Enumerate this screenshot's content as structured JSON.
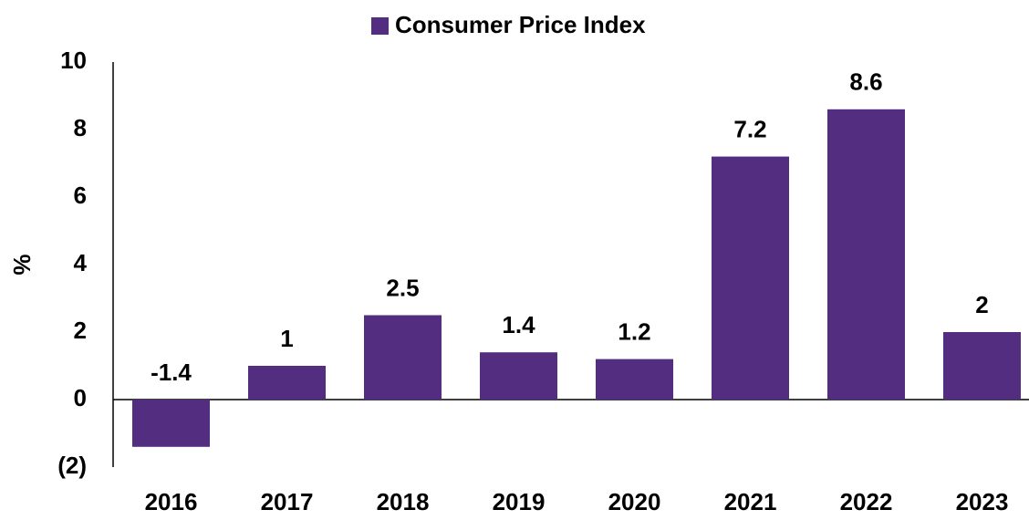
{
  "chart_data": {
    "type": "bar",
    "legend_label": "Consumer Price Index",
    "y_label": "%",
    "categories": [
      "2016",
      "2017",
      "2018",
      "2019",
      "2020",
      "2021",
      "2022",
      "2023"
    ],
    "values": [
      -1.4,
      1,
      2.5,
      1.4,
      1.2,
      7.2,
      8.6,
      2
    ],
    "color": "#532d7f",
    "ylim": [
      -2,
      10
    ],
    "yticks": [
      {
        "value": -2,
        "label": "(2)"
      },
      0,
      2,
      4,
      6,
      8,
      10
    ],
    "grid": false,
    "legend": "top"
  }
}
